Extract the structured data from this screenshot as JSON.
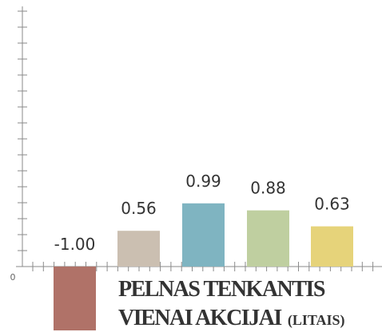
{
  "chart_data": {
    "type": "bar",
    "title": [
      "PELNAS TENKANTIS",
      "VIENAI AKCIJAI"
    ],
    "unit": "(LITAIS)",
    "values": [
      -1.0,
      0.56,
      0.99,
      0.88,
      0.63
    ],
    "value_labels": [
      "-1.00",
      "0.56",
      "0.99",
      "0.88",
      "0.63"
    ],
    "colors": [
      "#b07268",
      "#cbbfb1",
      "#7fb4c1",
      "#bfcfa0",
      "#e6d37a"
    ],
    "ylim": [
      -1,
      4
    ],
    "yticks": [
      0
    ]
  }
}
